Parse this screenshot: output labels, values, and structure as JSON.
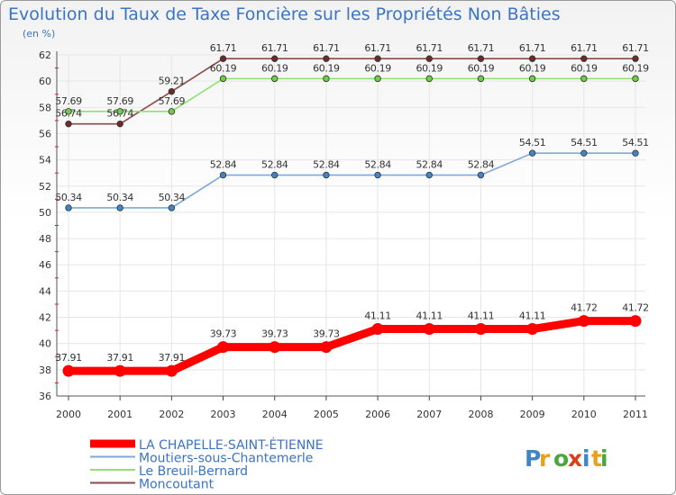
{
  "title": "Evolution du Taux de Taxe Foncière sur les Propriétés Non Bâties",
  "unit_label": "(en %)",
  "logo_text": "Proxiti",
  "chart_data": {
    "type": "line",
    "title": "Evolution du Taux de Taxe Foncière sur les Propriétés Non Bâties",
    "ylabel": "(en %)",
    "x": [
      "2000",
      "2001",
      "2002",
      "2003",
      "2004",
      "2005",
      "2006",
      "2007",
      "2008",
      "2009",
      "2010",
      "2011"
    ],
    "ylim": [
      36,
      62
    ],
    "yticks": [
      36,
      38,
      40,
      42,
      44,
      46,
      48,
      50,
      52,
      54,
      56,
      58,
      60,
      62
    ],
    "grid": true,
    "legend_position": "bottom-left",
    "series": [
      {
        "name": "LA CHAPELLE-SAINT-ÉTIENNE",
        "color": "#ff0000",
        "values": [
          37.91,
          37.91,
          37.91,
          39.73,
          39.73,
          39.73,
          41.11,
          41.11,
          41.11,
          41.11,
          41.72,
          41.72
        ],
        "labels": [
          "37.91",
          "37.91",
          "37.91",
          "39.73",
          "39.73",
          "39.73",
          "41.11",
          "41.11",
          "41.11",
          "41.11",
          "41.72",
          "41.72"
        ]
      },
      {
        "name": "Moutiers-sous-Chantemerle",
        "color": "#7fa8d8",
        "values": [
          50.34,
          50.34,
          50.34,
          52.84,
          52.84,
          52.84,
          52.84,
          52.84,
          52.84,
          54.51,
          54.51,
          54.51
        ],
        "labels": [
          "50.34",
          "50.34",
          "50.34",
          "52.84",
          "52.84",
          "52.84",
          "52.84",
          "52.84",
          "52.84",
          "54.51",
          "54.51",
          "54.51"
        ]
      },
      {
        "name": "Le Breuil-Bernard",
        "color": "#8fe070",
        "values": [
          57.69,
          57.69,
          57.69,
          60.19,
          60.19,
          60.19,
          60.19,
          60.19,
          60.19,
          60.19,
          60.19,
          60.19
        ],
        "labels": [
          "57.69",
          "57.69",
          "57.69",
          "60.19",
          "60.19",
          "60.19",
          "60.19",
          "60.19",
          "60.19",
          "60.19",
          "60.19",
          "60.19"
        ]
      },
      {
        "name": "Moncoutant",
        "color": "#8a4a4a",
        "values": [
          56.74,
          56.74,
          59.21,
          61.71,
          61.71,
          61.71,
          61.71,
          61.71,
          61.71,
          61.71,
          61.71,
          61.71
        ],
        "labels": [
          "56.74",
          "56.74",
          "59.21",
          "61.71",
          "61.71",
          "61.71",
          "61.71",
          "61.71",
          "61.71",
          "61.71",
          "61.71",
          "61.71"
        ]
      }
    ]
  }
}
